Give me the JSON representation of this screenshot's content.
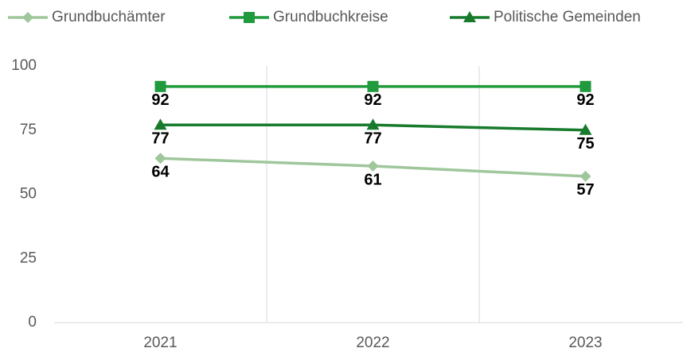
{
  "chart_data": {
    "type": "line",
    "categories": [
      "2021",
      "2022",
      "2023"
    ],
    "series": [
      {
        "name": "Grundbuchämter",
        "color": "#9fc79b",
        "marker": "diamond",
        "values": [
          64,
          61,
          57
        ]
      },
      {
        "name": "Grundbuchkreise",
        "color": "#1f9a3c",
        "marker": "square",
        "values": [
          92,
          92,
          92
        ]
      },
      {
        "name": "Politische Gemeinden",
        "color": "#177a2c",
        "marker": "triangle",
        "values": [
          77,
          77,
          75
        ]
      }
    ],
    "ylim": [
      0,
      100
    ],
    "yticks": [
      0,
      25,
      50,
      75,
      100
    ],
    "grid": true,
    "legend": "top"
  }
}
